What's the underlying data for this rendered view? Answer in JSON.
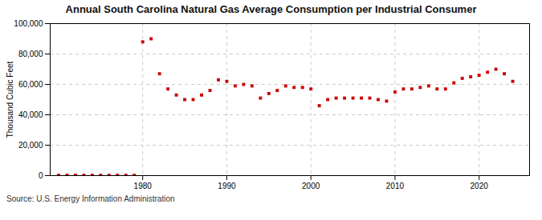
{
  "chart_data": {
    "type": "scatter",
    "title": "Annual South Carolina Natural Gas Average Consumption per Industrial Consumer",
    "ylabel": "Thousand Cubic Feet",
    "source": "Source: U.S. Energy Information Administration",
    "color": "#cc0000",
    "marker": "square",
    "grid": true,
    "xlim": [
      1969,
      2026
    ],
    "xticks": [
      1980,
      1990,
      2000,
      2010,
      2020
    ],
    "ylim": [
      0,
      100000
    ],
    "yticks": [
      0,
      {
        "value": 20000,
        "label": "20,000"
      },
      {
        "value": 40000,
        "label": "40,000"
      },
      {
        "value": 60000,
        "label": "60,000"
      },
      {
        "value": 80000,
        "label": "80,000"
      },
      {
        "value": 100000,
        "label": "100,000"
      }
    ],
    "x": [
      1970,
      1971,
      1972,
      1973,
      1974,
      1975,
      1976,
      1977,
      1978,
      1979,
      1980,
      1981,
      1982,
      1983,
      1984,
      1985,
      1986,
      1987,
      1988,
      1989,
      1990,
      1991,
      1992,
      1993,
      1994,
      1995,
      1996,
      1997,
      1998,
      1999,
      2000,
      2001,
      2002,
      2003,
      2004,
      2005,
      2006,
      2007,
      2008,
      2009,
      2010,
      2011,
      2012,
      2013,
      2014,
      2015,
      2016,
      2017,
      2018,
      2019,
      2020,
      2021,
      2022,
      2023,
      2024
    ],
    "values": [
      200,
      200,
      200,
      200,
      200,
      200,
      200,
      200,
      200,
      200,
      88000,
      90000,
      67000,
      57000,
      53000,
      50000,
      50000,
      53000,
      56000,
      63000,
      62000,
      59000,
      60000,
      59000,
      51000,
      54000,
      56000,
      59000,
      58000,
      58000,
      57000,
      46000,
      50000,
      51000,
      51000,
      51000,
      51000,
      51000,
      50000,
      49000,
      55000,
      57000,
      57000,
      58000,
      59000,
      57000,
      57000,
      61000,
      64000,
      65000,
      66000,
      68000,
      70000,
      67000,
      62000
    ]
  }
}
